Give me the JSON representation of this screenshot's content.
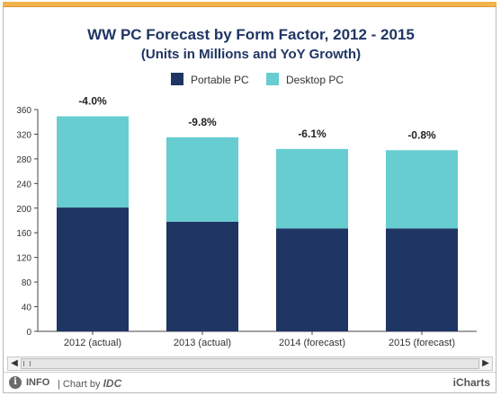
{
  "chart_data": {
    "type": "bar",
    "stacked": true,
    "title": "WW PC Forecast by Form Factor, 2012 - 2015",
    "subtitle": "(Units in Millions and YoY Growth)",
    "categories": [
      "2012 (actual)",
      "2013 (actual)",
      "2014 (forecast)",
      "2015 (forecast)"
    ],
    "series": [
      {
        "name": "Portable PC",
        "values": [
          201,
          178,
          167,
          167
        ],
        "color": "#1f3564"
      },
      {
        "name": "Desktop PC",
        "values": [
          148,
          137,
          129,
          127
        ],
        "color": "#67cdd0"
      }
    ],
    "annotations": [
      "-4.0%",
      "-9.8%",
      "-6.1%",
      "-0.8%"
    ],
    "yticks": [
      "0",
      "40",
      "80",
      "120",
      "160",
      "200",
      "240",
      "280",
      "320",
      "360"
    ],
    "ylim": [
      0,
      360
    ],
    "legend_position": "top",
    "grid": false
  },
  "footer": {
    "info_label": "INFO",
    "chart_by": "| Chart by",
    "brand": "IDC",
    "right_brand": "iCharts"
  },
  "scrollbar": {
    "left_arrow": "◀",
    "right_arrow": "▶"
  }
}
